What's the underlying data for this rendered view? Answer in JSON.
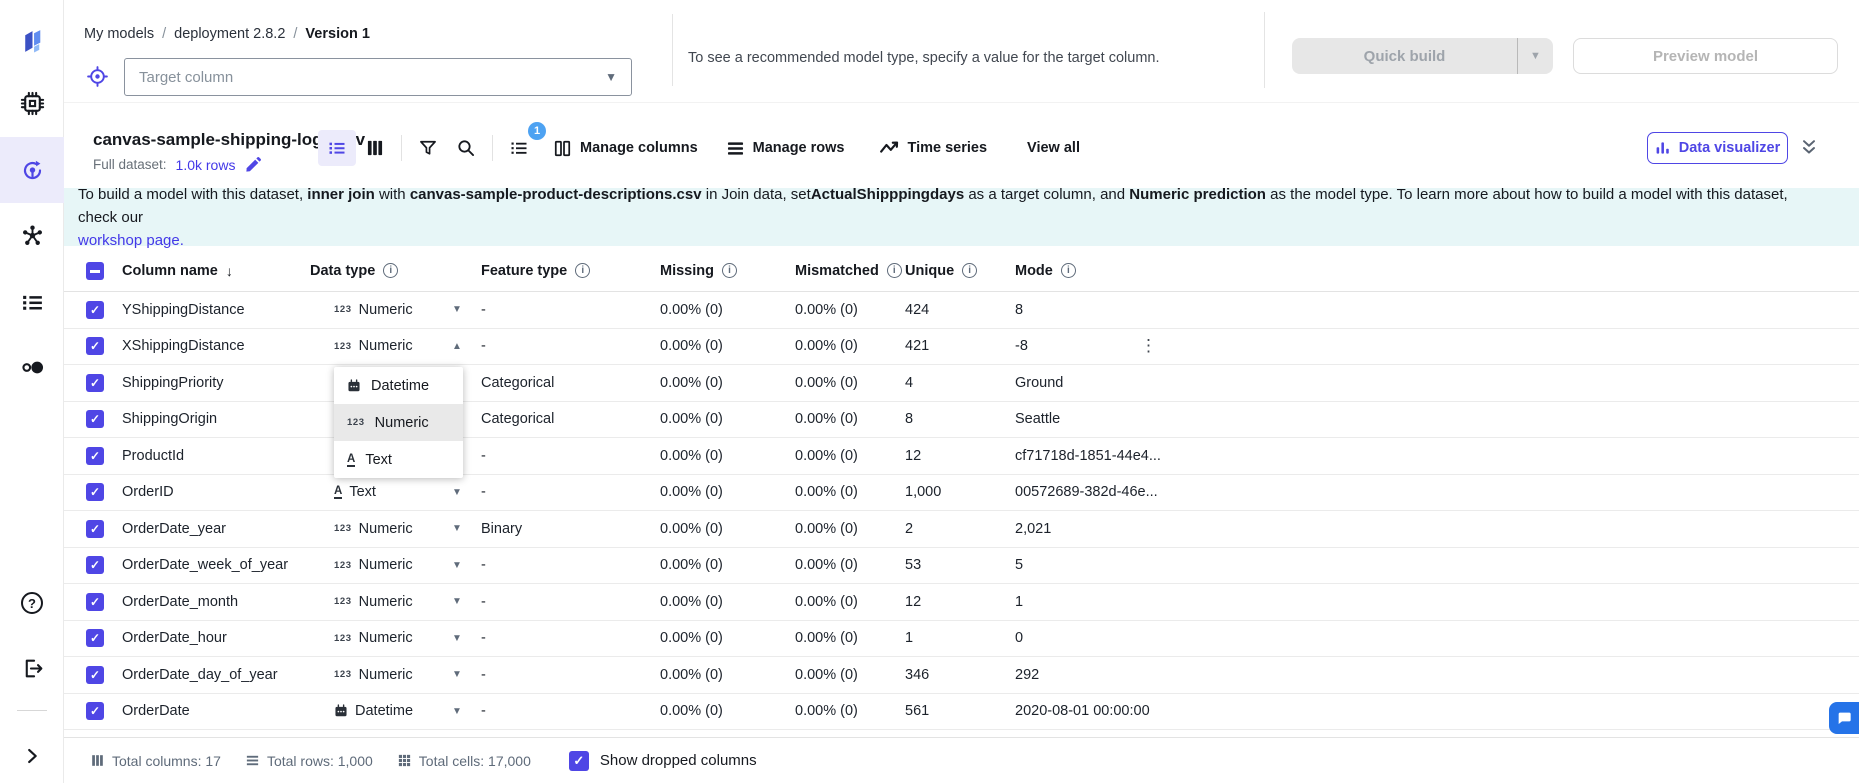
{
  "colors": {
    "accent": "#4f46e5",
    "banner_bg": "#e7f6f7",
    "badge_blue": "#4da2f2",
    "chat_blue": "#2573e8",
    "sidebar_active_bg": "#ecebfb"
  },
  "sidebar": {
    "icons": [
      "canvas-logo",
      "chip",
      "model-build",
      "molecule",
      "list",
      "compare-circles",
      "help",
      "logout",
      "expand"
    ]
  },
  "breadcrumb": {
    "separator": "/",
    "items": [
      {
        "label": "My models"
      },
      {
        "label": "deployment 2.8.2"
      },
      {
        "label": "Version 1",
        "current": true
      }
    ]
  },
  "target_bar": {
    "placeholder": "Target column",
    "hint": "To see a recommended model type, specify a value for the target column.",
    "quick_build": "Quick build",
    "preview_model": "Preview model"
  },
  "dataset_bar": {
    "name": "canvas-sample-shipping-logs.csv",
    "full_dataset_label": "Full dataset:",
    "rows_link": "1.0k rows",
    "sort_badge": "1",
    "manage_columns": "Manage columns",
    "manage_rows": "Manage rows",
    "time_series": "Time series",
    "view_all": "View all",
    "data_visualizer": "Data visualizer"
  },
  "banner": {
    "segments": [
      {
        "t": "To build a model with this dataset, "
      },
      {
        "t": "inner join",
        "b": true
      },
      {
        "t": " with "
      },
      {
        "t": "canvas-sample-product-descriptions.csv",
        "b": true
      },
      {
        "t": " in Join data, set"
      },
      {
        "t": "ActualShipppingdays",
        "b": true
      },
      {
        "t": " as a target column, and "
      },
      {
        "t": "Numeric prediction",
        "b": true
      },
      {
        "t": " as the model type. To learn more about how to build a model with this dataset, check our"
      },
      {
        "br": true
      },
      {
        "t": "workshop page.",
        "link": true
      }
    ]
  },
  "table": {
    "headers": {
      "column_name": "Column name",
      "data_type": "Data type",
      "feature_type": "Feature type",
      "missing": "Missing",
      "mismatched": "Mismatched",
      "unique": "Unique",
      "mode": "Mode"
    },
    "rows": [
      {
        "name": "YShippingDistance",
        "dtype": {
          "icon": "123",
          "label": "Numeric",
          "open": false
        },
        "feature": "-",
        "missing": "0.00% (0)",
        "mismatched": "0.00% (0)",
        "unique": "424",
        "mode": "8"
      },
      {
        "name": "XShippingDistance",
        "dtype": {
          "icon": "123",
          "label": "Numeric",
          "open": true
        },
        "feature": "-",
        "missing": "0.00% (0)",
        "mismatched": "0.00% (0)",
        "unique": "421",
        "mode": "-8",
        "kebab": true
      },
      {
        "name": "ShippingPriority",
        "dtype": null,
        "feature": "Categorical",
        "missing": "0.00% (0)",
        "mismatched": "0.00% (0)",
        "unique": "4",
        "mode": "Ground"
      },
      {
        "name": "ShippingOrigin",
        "dtype": null,
        "feature": "Categorical",
        "missing": "0.00% (0)",
        "mismatched": "0.00% (0)",
        "unique": "8",
        "mode": "Seattle"
      },
      {
        "name": "ProductId",
        "dtype": null,
        "feature": "-",
        "missing": "0.00% (0)",
        "mismatched": "0.00% (0)",
        "unique": "12",
        "mode": "cf71718d-1851-44e4..."
      },
      {
        "name": "OrderID",
        "dtype": {
          "icon": "A",
          "label": "Text"
        },
        "feature": "-",
        "missing": "0.00% (0)",
        "mismatched": "0.00% (0)",
        "unique": "1,000",
        "mode": "00572689-382d-46e..."
      },
      {
        "name": "OrderDate_year",
        "dtype": {
          "icon": "123",
          "label": "Numeric"
        },
        "feature": "Binary",
        "missing": "0.00% (0)",
        "mismatched": "0.00% (0)",
        "unique": "2",
        "mode": "2,021"
      },
      {
        "name": "OrderDate_week_of_year",
        "dtype": {
          "icon": "123",
          "label": "Numeric"
        },
        "feature": "-",
        "missing": "0.00% (0)",
        "mismatched": "0.00% (0)",
        "unique": "53",
        "mode": "5"
      },
      {
        "name": "OrderDate_month",
        "dtype": {
          "icon": "123",
          "label": "Numeric"
        },
        "feature": "-",
        "missing": "0.00% (0)",
        "mismatched": "0.00% (0)",
        "unique": "12",
        "mode": "1"
      },
      {
        "name": "OrderDate_hour",
        "dtype": {
          "icon": "123",
          "label": "Numeric"
        },
        "feature": "-",
        "missing": "0.00% (0)",
        "mismatched": "0.00% (0)",
        "unique": "1",
        "mode": "0"
      },
      {
        "name": "OrderDate_day_of_year",
        "dtype": {
          "icon": "123",
          "label": "Numeric"
        },
        "feature": "-",
        "missing": "0.00% (0)",
        "mismatched": "0.00% (0)",
        "unique": "346",
        "mode": "292"
      },
      {
        "name": "OrderDate",
        "dtype": {
          "icon": "calendar",
          "label": "Datetime"
        },
        "feature": "-",
        "missing": "0.00% (0)",
        "mismatched": "0.00% (0)",
        "unique": "561",
        "mode": "2020-08-01 00:00:00"
      }
    ]
  },
  "dropdown": {
    "items": [
      {
        "icon": "calendar",
        "label": "Datetime"
      },
      {
        "icon": "123",
        "label": "Numeric",
        "selected": true
      },
      {
        "icon": "A",
        "label": "Text"
      }
    ]
  },
  "footer": {
    "total_columns": "Total columns: 17",
    "total_rows": "Total rows: 1,000",
    "total_cells": "Total cells: 17,000",
    "show_dropped": "Show dropped columns"
  }
}
